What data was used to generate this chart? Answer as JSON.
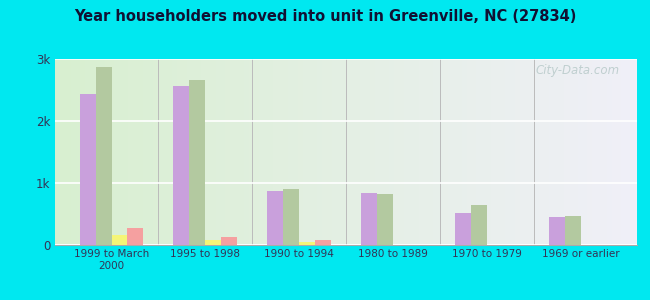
{
  "title": "Year householders moved into unit in Greenville, NC (27834)",
  "categories": [
    "1999 to March\n2000",
    "1995 to 1998",
    "1990 to 1994",
    "1980 to 1989",
    "1970 to 1979",
    "1969 or earlier"
  ],
  "series": {
    "White Non-Hispanic": [
      2420,
      2560,
      870,
      830,
      510,
      440
    ],
    "Black": [
      2870,
      2660,
      900,
      810,
      640,
      460
    ],
    "Other Race": [
      155,
      75,
      35,
      0,
      0,
      0
    ],
    "Hispanic or Latino": [
      265,
      115,
      65,
      0,
      0,
      0
    ]
  },
  "colors": {
    "White Non-Hispanic": "#c9a0dc",
    "Black": "#b3c9a0",
    "Other Race": "#f5f577",
    "Hispanic or Latino": "#f5a0a0"
  },
  "ylim": [
    0,
    3000
  ],
  "yticks": [
    0,
    1000,
    2000,
    3000
  ],
  "ytick_labels": [
    "0",
    "1k",
    "2k",
    "3k"
  ],
  "background_outer": "#00e8f0",
  "bar_width": 0.17,
  "grid_color": "#ffffff",
  "watermark": "City-Data.com"
}
